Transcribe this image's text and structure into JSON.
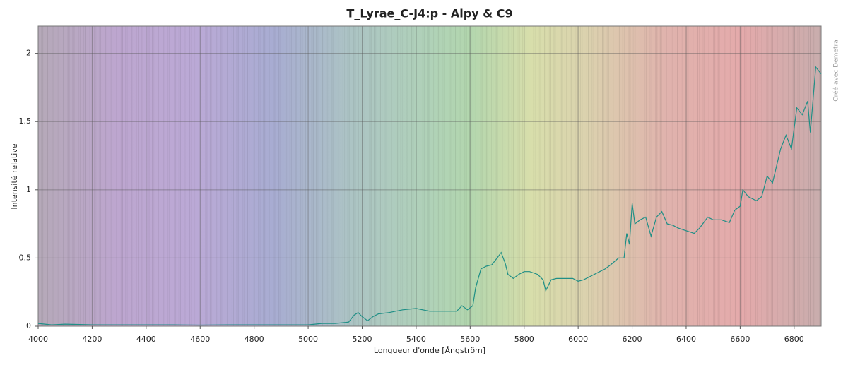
{
  "chart_data": {
    "type": "line",
    "title": "T_Lyrae_C-J4:p - Alpy & C9",
    "xlabel": "Longueur d'onde [Ångström]",
    "ylabel": "Intensité relative",
    "watermark": "Créé avec Demetra",
    "xlim": [
      4000,
      6900
    ],
    "ylim": [
      0,
      2.2
    ],
    "xticks": [
      4000,
      4200,
      4400,
      4600,
      4800,
      5000,
      5200,
      5400,
      5600,
      5800,
      6000,
      6200,
      6400,
      6600,
      6800
    ],
    "yticks": [
      0,
      0.5,
      1,
      1.5,
      2
    ],
    "grid": true,
    "series": [
      {
        "name": "T_Lyrae_C-J4:p",
        "color": "#1f8f86",
        "x": [
          4000,
          4050,
          4100,
          4200,
          4300,
          4400,
          4500,
          4600,
          4700,
          4800,
          4900,
          5000,
          5050,
          5100,
          5150,
          5170,
          5185,
          5200,
          5220,
          5240,
          5260,
          5300,
          5350,
          5400,
          5450,
          5500,
          5550,
          5570,
          5590,
          5610,
          5620,
          5640,
          5660,
          5680,
          5700,
          5715,
          5730,
          5740,
          5760,
          5780,
          5800,
          5820,
          5850,
          5870,
          5880,
          5900,
          5920,
          5950,
          5980,
          6000,
          6020,
          6050,
          6080,
          6100,
          6120,
          6150,
          6170,
          6180,
          6190,
          6200,
          6210,
          6230,
          6250,
          6270,
          6290,
          6310,
          6330,
          6350,
          6370,
          6400,
          6430,
          6450,
          6480,
          6500,
          6530,
          6560,
          6580,
          6600,
          6610,
          6630,
          6660,
          6680,
          6700,
          6720,
          6750,
          6770,
          6790,
          6810,
          6830,
          6850,
          6860,
          6880,
          6900
        ],
        "values": [
          0.02,
          0.01,
          0.015,
          0.01,
          0.01,
          0.01,
          0.01,
          0.008,
          0.01,
          0.01,
          0.01,
          0.01,
          0.02,
          0.02,
          0.03,
          0.08,
          0.1,
          0.07,
          0.04,
          0.07,
          0.09,
          0.1,
          0.12,
          0.13,
          0.11,
          0.11,
          0.11,
          0.15,
          0.12,
          0.15,
          0.28,
          0.42,
          0.44,
          0.45,
          0.5,
          0.54,
          0.46,
          0.38,
          0.35,
          0.38,
          0.4,
          0.4,
          0.38,
          0.34,
          0.26,
          0.34,
          0.35,
          0.35,
          0.35,
          0.33,
          0.34,
          0.37,
          0.4,
          0.42,
          0.45,
          0.5,
          0.5,
          0.68,
          0.6,
          0.9,
          0.75,
          0.78,
          0.8,
          0.66,
          0.8,
          0.84,
          0.75,
          0.74,
          0.72,
          0.7,
          0.68,
          0.72,
          0.8,
          0.78,
          0.78,
          0.76,
          0.85,
          0.88,
          1.0,
          0.95,
          0.92,
          0.95,
          1.1,
          1.05,
          1.3,
          1.4,
          1.3,
          1.6,
          1.55,
          1.65,
          1.42,
          1.9,
          1.85
        ]
      }
    ]
  }
}
